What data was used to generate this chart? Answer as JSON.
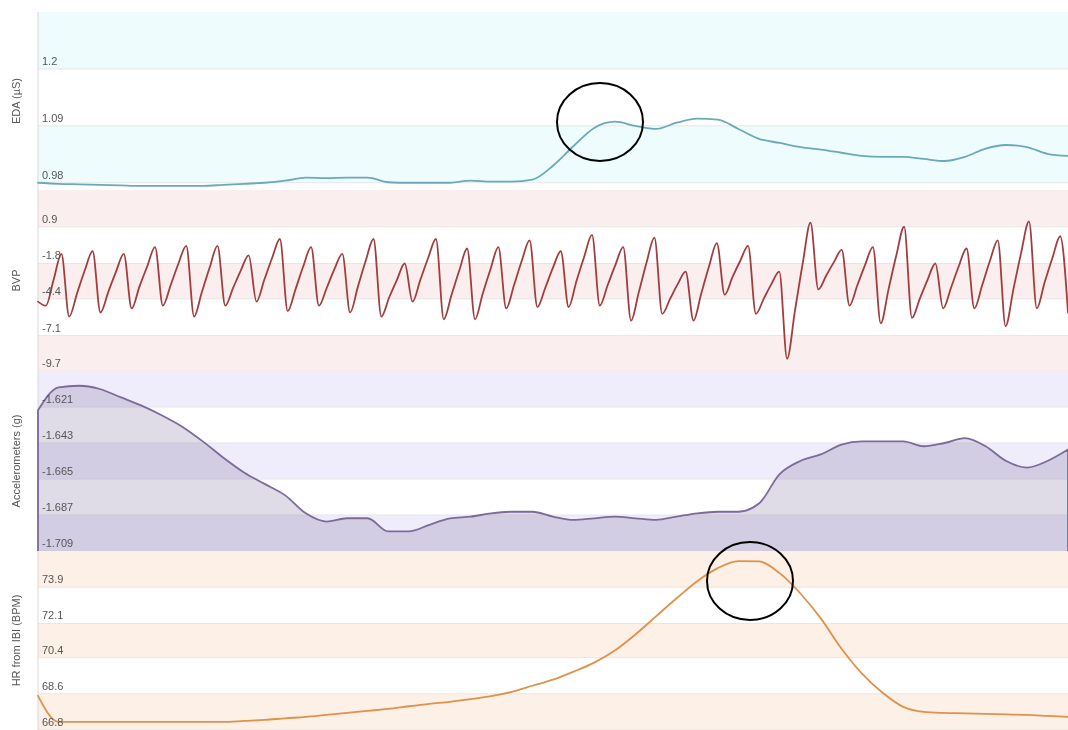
{
  "chart_data": [
    {
      "type": "line",
      "ylabel": "EDA (µS)",
      "tick_labels": "y",
      "grid": "y",
      "categories": [
        null,
        null,
        null,
        null,
        null,
        null,
        null,
        null,
        null,
        null,
        null,
        null,
        null,
        null,
        null,
        null,
        null,
        null,
        null,
        null,
        null,
        null,
        null,
        null,
        null,
        null,
        null,
        null,
        null,
        null,
        null,
        null,
        null,
        null,
        null,
        null,
        null,
        null,
        null,
        null,
        null,
        null,
        null,
        null,
        null,
        null,
        null,
        null,
        null,
        null,
        null
      ],
      "ylim": [
        0.966,
        1.31
      ],
      "yticks": [
        0.98,
        1.09,
        1.2
      ],
      "bands": [
        {
          "axis": "y",
          "from": 1.2,
          "to": 1.31,
          "color": "#eefcfd"
        },
        {
          "axis": "y",
          "from": 0.98,
          "to": 1.09,
          "color": "#eefcfd"
        }
      ],
      "series": [
        {
          "color": "#6aaab8",
          "values": [
            0.98,
            0.978,
            0.977,
            0.976,
            0.975,
            0.974,
            0.974,
            0.974,
            0.974,
            0.976,
            0.978,
            0.98,
            0.984,
            0.99,
            0.989,
            0.99,
            0.99,
            0.981,
            0.98,
            0.98,
            0.98,
            0.984,
            0.982,
            0.982,
            0.986,
            1.013,
            1.051,
            1.086,
            1.098,
            1.09,
            1.084,
            1.096,
            1.104,
            1.102,
            1.084,
            1.065,
            1.057,
            1.049,
            1.044,
            1.038,
            1.032,
            1.03,
            1.03,
            1.026,
            1.022,
            1.03,
            1.046,
            1.053,
            1.049,
            1.036,
            1.032
          ]
        }
      ]
    },
    {
      "type": "line",
      "ylabel": "BVP",
      "tick_labels": "y",
      "grid": "y",
      "categories": [
        null,
        null,
        null,
        null,
        null,
        null,
        null,
        null,
        null,
        null,
        null,
        null,
        null,
        null,
        null,
        null,
        null,
        null,
        null,
        null,
        null,
        null,
        null,
        null,
        null,
        null,
        null,
        null,
        null,
        null,
        null,
        null,
        null,
        null,
        null,
        null,
        null,
        null,
        null,
        null,
        null,
        null,
        null,
        null,
        null,
        null,
        null,
        null,
        null,
        null,
        null,
        null,
        null,
        null,
        null,
        null,
        null,
        null,
        null,
        null,
        null,
        null,
        null,
        null,
        null,
        null,
        null,
        null,
        null,
        null,
        null,
        null,
        null,
        null,
        null,
        null,
        null,
        null,
        null,
        null,
        null,
        null,
        null,
        null,
        null,
        null,
        null,
        null,
        null,
        null,
        null,
        null,
        null,
        null,
        null,
        null,
        null,
        null,
        null,
        null,
        null,
        null,
        null,
        null,
        null,
        null,
        null,
        null,
        null,
        null,
        null,
        null,
        null,
        null,
        null,
        null,
        null,
        null,
        null,
        null,
        null,
        null,
        null,
        null,
        null,
        null,
        null,
        null,
        null,
        null,
        null,
        null,
        null
      ],
      "ylim": [
        -9.7,
        3.6
      ],
      "yticks": [
        -9.7,
        -7.1,
        -4.4,
        -1.8,
        0.9
      ],
      "bands": [
        {
          "axis": "y",
          "from": 0.9,
          "to": 3.6,
          "color": "#fbeeee"
        },
        {
          "axis": "y",
          "from": -4.4,
          "to": -1.8,
          "color": "#fbeeee"
        },
        {
          "axis": "y",
          "from": -9.7,
          "to": -7.1,
          "color": "#fbeeee"
        }
      ],
      "series": [
        {
          "color": "#a33d3d",
          "values": [
            -4.6,
            -4.9,
            -3.0,
            -1.1,
            -5.7,
            -4.0,
            -2.3,
            -0.9,
            -5.4,
            -3.9,
            -2.4,
            -1.1,
            -5.1,
            -3.5,
            -2.0,
            -0.6,
            -4.9,
            -3.4,
            -1.8,
            -0.5,
            -5.7,
            -3.9,
            -2.1,
            -0.5,
            -4.9,
            -3.6,
            -2.3,
            -1.2,
            -4.6,
            -3.0,
            -1.4,
            0.0,
            -5.3,
            -3.7,
            -2.0,
            -0.6,
            -4.9,
            -3.6,
            -2.2,
            -1.1,
            -5.4,
            -3.5,
            -1.6,
            0.0,
            -5.7,
            -4.3,
            -3.0,
            -1.8,
            -4.6,
            -3.0,
            -1.4,
            0.0,
            -5.9,
            -4.1,
            -2.3,
            -0.7,
            -5.9,
            -4.0,
            -2.2,
            -0.6,
            -5.1,
            -3.4,
            -1.6,
            -0.1,
            -5.0,
            -3.6,
            -2.1,
            -0.9,
            -5.0,
            -3.1,
            -1.3,
            0.3,
            -4.9,
            -3.4,
            -1.9,
            -0.6,
            -6.0,
            -3.9,
            -1.7,
            0.1,
            -5.5,
            -4.4,
            -3.3,
            -2.4,
            -6.0,
            -4.0,
            -2.0,
            -0.3,
            -4.1,
            -2.8,
            -1.6,
            -0.5,
            -5.5,
            -4.4,
            -3.3,
            -2.4,
            -8.8,
            -5.3,
            -1.8,
            1.2,
            -3.7,
            -2.7,
            -1.7,
            -0.8,
            -4.9,
            -3.4,
            -1.9,
            -0.6,
            -6.2,
            -3.7,
            -1.2,
            0.9,
            -5.8,
            -4.4,
            -3.0,
            -1.8,
            -5.1,
            -3.6,
            -2.0,
            -0.7,
            -5.1,
            -3.4,
            -1.6,
            -0.1,
            -6.4,
            -3.7,
            -1.0,
            1.3,
            -5.1,
            -3.2,
            -1.4,
            0.2,
            -5.4
          ]
        }
      ]
    },
    {
      "type": "area",
      "ylabel": "Accelerometers (g)",
      "tick_labels": "y",
      "grid": "y",
      "categories": [
        null,
        null,
        null,
        null,
        null,
        null,
        null,
        null,
        null,
        null,
        null,
        null,
        null,
        null,
        null,
        null,
        null,
        null,
        null,
        null,
        null,
        null,
        null,
        null,
        null,
        null,
        null,
        null,
        null,
        null,
        null,
        null,
        null,
        null,
        null,
        null,
        null,
        null,
        null,
        null,
        null,
        null,
        null,
        null,
        null,
        null,
        null,
        null,
        null,
        null,
        null
      ],
      "ylim": [
        -1.709,
        -1.599
      ],
      "yticks": [
        -1.709,
        -1.687,
        -1.665,
        -1.643,
        -1.621
      ],
      "bands": [
        {
          "axis": "y",
          "from": -1.621,
          "to": -1.599,
          "color": "#efedfb"
        },
        {
          "axis": "y",
          "from": -1.665,
          "to": -1.643,
          "color": "#efedfb"
        },
        {
          "axis": "y",
          "from": -1.709,
          "to": -1.687,
          "color": "#efedfb"
        }
      ],
      "series": [
        {
          "color": "#7b6a9a",
          "values": [
            -1.623,
            -1.609,
            -1.608,
            -1.61,
            -1.615,
            -1.62,
            -1.626,
            -1.633,
            -1.642,
            -1.652,
            -1.661,
            -1.668,
            -1.675,
            -1.686,
            -1.691,
            -1.689,
            -1.689,
            -1.697,
            -1.697,
            -1.693,
            -1.689,
            -1.688,
            -1.686,
            -1.685,
            -1.685,
            -1.688,
            -1.69,
            -1.689,
            -1.688,
            -1.689,
            -1.69,
            -1.688,
            -1.686,
            -1.685,
            -1.685,
            -1.68,
            -1.662,
            -1.654,
            -1.65,
            -1.644,
            -1.642,
            -1.642,
            -1.642,
            -1.645,
            -1.643,
            -1.64,
            -1.645,
            -1.654,
            -1.658,
            -1.654,
            -1.647
          ]
        }
      ]
    },
    {
      "type": "line",
      "ylabel": "HR from IBI (BPM)",
      "tick_labels": "y",
      "grid": "y",
      "categories": [
        null,
        null,
        null,
        null,
        null,
        null,
        null,
        null,
        null,
        null,
        null,
        null,
        null,
        null,
        null,
        null,
        null,
        null,
        null,
        null,
        null,
        null,
        null,
        null,
        null,
        null,
        null,
        null,
        null,
        null,
        null,
        null,
        null,
        null,
        null,
        null,
        null,
        null,
        null,
        null,
        null,
        null,
        null,
        null,
        null,
        null,
        null,
        null,
        null,
        null,
        null
      ],
      "ylim": [
        66.8,
        75.7
      ],
      "yticks": [
        66.8,
        68.6,
        70.4,
        72.1,
        73.9
      ],
      "bands": [
        {
          "axis": "y",
          "from": 73.9,
          "to": 75.7,
          "color": "#fdf0e6"
        },
        {
          "axis": "y",
          "from": 70.4,
          "to": 72.1,
          "color": "#fdf0e6"
        },
        {
          "axis": "y",
          "from": 66.8,
          "to": 68.6,
          "color": "#fdf0e6"
        }
      ],
      "series": [
        {
          "color": "#e0914a",
          "values": [
            68.5,
            67.2,
            67.2,
            67.2,
            67.2,
            67.2,
            67.2,
            67.2,
            67.2,
            67.2,
            67.25,
            67.3,
            67.38,
            67.45,
            67.55,
            67.65,
            67.75,
            67.85,
            67.98,
            68.1,
            68.2,
            68.33,
            68.48,
            68.7,
            69.0,
            69.3,
            69.7,
            70.15,
            70.75,
            71.55,
            72.45,
            73.35,
            74.2,
            74.85,
            75.2,
            75.18,
            74.6,
            73.6,
            72.35,
            70.85,
            69.6,
            68.65,
            67.95,
            67.7,
            67.65,
            67.63,
            67.6,
            67.58,
            67.55,
            67.5,
            67.45
          ]
        }
      ]
    }
  ]
}
